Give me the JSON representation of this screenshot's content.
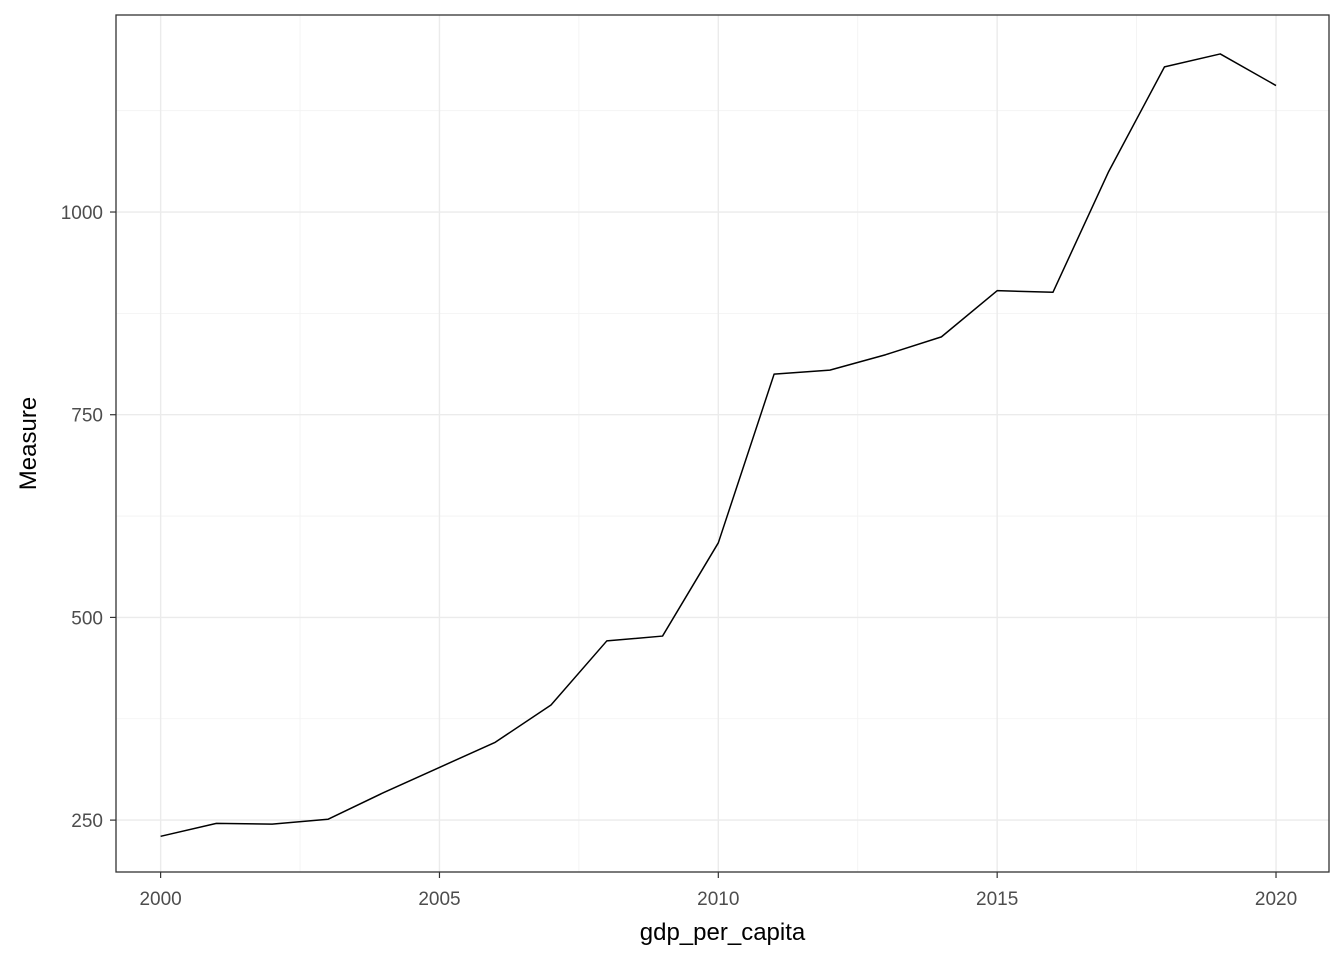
{
  "chart_data": {
    "type": "line",
    "title": "",
    "xlabel": "gdp_per_capita",
    "ylabel": "Measure",
    "x": [
      2000,
      2001,
      2002,
      2003,
      2004,
      2005,
      2006,
      2007,
      2008,
      2009,
      2010,
      2011,
      2012,
      2013,
      2014,
      2015,
      2016,
      2017,
      2018,
      2019,
      2020
    ],
    "series": [
      {
        "values": [
          230,
          246,
          245,
          251,
          284,
          315,
          346,
          392,
          471,
          477,
          592,
          800,
          805,
          824,
          846,
          903,
          901,
          1050,
          1179,
          1195,
          1156
        ]
      }
    ],
    "xlim": [
      1999.2,
      2020.95
    ],
    "ylim": [
      186,
      1243
    ],
    "x_ticks": [
      "2000",
      "2005",
      "2010",
      "2015",
      "2020"
    ],
    "y_ticks": [
      "250",
      "500",
      "750",
      "1000"
    ],
    "grid": true,
    "legend": "none"
  }
}
